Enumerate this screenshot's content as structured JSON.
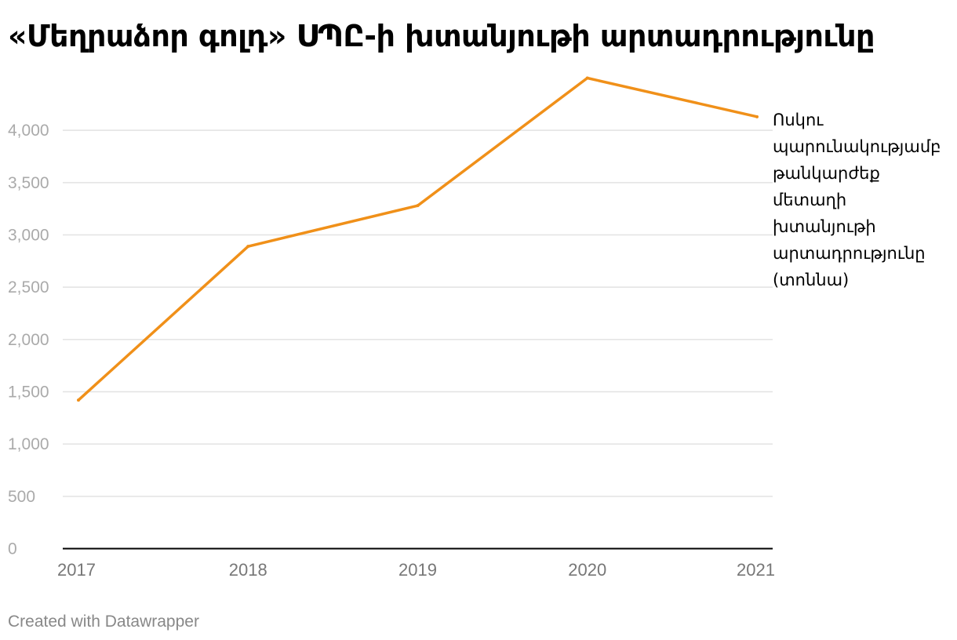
{
  "chart_data": {
    "type": "line",
    "title": "«Մեղրաձոր գոլդ» ՍՊԸ-ի խտանյութի արտադրությունը",
    "x": [
      "2017",
      "2018",
      "2019",
      "2020",
      "2021"
    ],
    "series": [
      {
        "name": "Ոսկու պարունակությամբ թանկարժեք մետաղի խտանյութի արտադրությունը (տոննա)",
        "label_lines": [
          "Ոսկու",
          "պարունակությամբ",
          "թանկարժեք",
          "մետաղի",
          "խտանյութի",
          "արտադրությունը",
          "(տոննա)"
        ],
        "values": [
          1420,
          2890,
          3280,
          4500,
          4130
        ],
        "color": "#f09019"
      }
    ],
    "yticks": [
      "4,000",
      "3,500",
      "3,000",
      "2,500",
      "2,000",
      "1,500",
      "1,000",
      "500",
      "0"
    ],
    "ytick_values": [
      4000,
      3500,
      3000,
      2500,
      2000,
      1500,
      1000,
      500,
      0
    ],
    "ylim": [
      0,
      4500
    ],
    "grid": true,
    "legend": "direct-label-right",
    "xlabel": "",
    "ylabel": ""
  },
  "footer": {
    "credit": "Created with Datawrapper"
  },
  "colors": {
    "line": "#f09019",
    "grid": "#e2e2e2",
    "axis": "#000000",
    "ytick_text": "#aaaaaa",
    "xtick_text": "#777777"
  }
}
